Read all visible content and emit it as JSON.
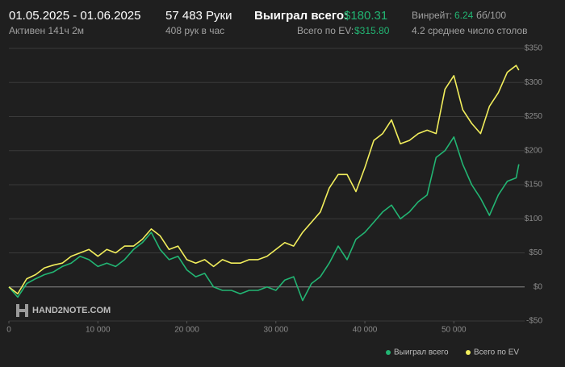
{
  "header": {
    "period": "01.05.2025 - 01.06.2025",
    "active": "Активен 141ч 2м",
    "hands": "57 483 Руки",
    "hands_per_hour": "408 рук в час",
    "won_label": "Выиграл всего:",
    "won_value": "$180.31",
    "ev_label": "Всего по EV:",
    "ev_value": "$315.80",
    "winrate_label": "Винрейт:",
    "winrate_value": "6.24",
    "winrate_unit": "бб/100",
    "tables": "4.2 среднее число столов"
  },
  "watermark": "HAND2NOTE.COM",
  "chart_data": {
    "type": "line",
    "x": [
      0,
      1000,
      2000,
      3000,
      4000,
      5000,
      6000,
      7000,
      8000,
      9000,
      10000,
      11000,
      12000,
      13000,
      14000,
      15000,
      16000,
      17000,
      18000,
      19000,
      20000,
      21000,
      22000,
      23000,
      24000,
      25000,
      26000,
      27000,
      28000,
      29000,
      30000,
      31000,
      32000,
      33000,
      34000,
      35000,
      36000,
      37000,
      38000,
      39000,
      40000,
      41000,
      42000,
      43000,
      44000,
      45000,
      46000,
      47000,
      48000,
      49000,
      50000,
      51000,
      52000,
      53000,
      54000,
      55000,
      56000,
      57000,
      57300
    ],
    "series": [
      {
        "name": "Выиграл всего",
        "color": "#22b573",
        "values": [
          0,
          -15,
          5,
          12,
          18,
          22,
          30,
          35,
          45,
          40,
          30,
          35,
          30,
          40,
          55,
          65,
          80,
          55,
          40,
          45,
          25,
          15,
          20,
          0,
          -5,
          -5,
          -10,
          -5,
          -5,
          0,
          -5,
          10,
          15,
          -20,
          5,
          15,
          35,
          60,
          40,
          70,
          80,
          95,
          110,
          120,
          100,
          110,
          125,
          135,
          190,
          200,
          220,
          180,
          150,
          130,
          105,
          135,
          155,
          160,
          180
        ]
      },
      {
        "name": "Всего по EV",
        "color": "#f2ee5c",
        "values": [
          0,
          -10,
          12,
          18,
          28,
          32,
          35,
          45,
          50,
          55,
          45,
          55,
          50,
          60,
          60,
          70,
          85,
          75,
          55,
          60,
          40,
          35,
          40,
          30,
          40,
          35,
          35,
          40,
          40,
          45,
          55,
          65,
          60,
          80,
          95,
          110,
          145,
          165,
          165,
          140,
          175,
          215,
          225,
          245,
          210,
          215,
          225,
          230,
          225,
          290,
          310,
          260,
          240,
          225,
          265,
          285,
          315,
          325,
          318
        ]
      }
    ],
    "xlim": [
      0,
      57500
    ],
    "ylim": [
      -50,
      350
    ],
    "xticks": [
      0,
      {
        "value": 10000,
        "label": "10 000"
      },
      {
        "value": 20000,
        "label": "20 000"
      },
      {
        "value": 30000,
        "label": "30 000"
      },
      {
        "value": 40000,
        "label": "40 000"
      },
      {
        "value": 50000,
        "label": "50 000"
      }
    ],
    "yticks": [
      {
        "value": -50,
        "label": "-$50"
      },
      {
        "value": 0,
        "label": "$0"
      },
      {
        "value": 50,
        "label": "$50"
      },
      {
        "value": 100,
        "label": "$100"
      },
      {
        "value": 150,
        "label": "$150"
      },
      {
        "value": 200,
        "label": "$200"
      },
      {
        "value": 250,
        "label": "$250"
      },
      {
        "value": 300,
        "label": "$300"
      },
      {
        "value": 350,
        "label": "$350"
      }
    ],
    "grid": true
  }
}
